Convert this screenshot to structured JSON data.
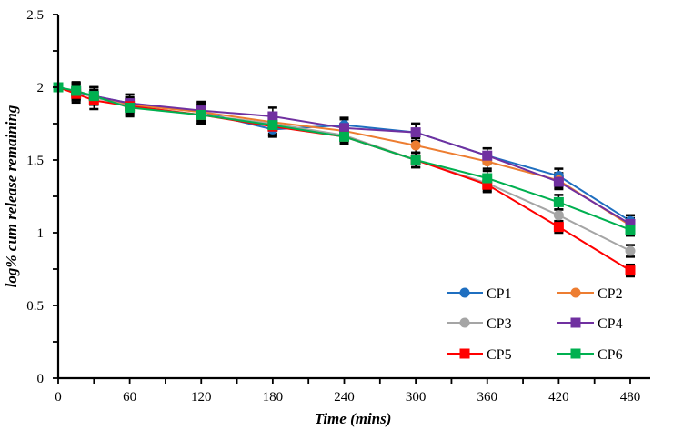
{
  "chart_data": {
    "type": "line",
    "title": "",
    "xlabel": "Time (mins)",
    "ylabel": "log% cum release remaining",
    "xlim": [
      0,
      495
    ],
    "ylim": [
      0,
      2.5
    ],
    "xticks": [
      0,
      60,
      120,
      180,
      240,
      300,
      360,
      420,
      480
    ],
    "xtick_labels": [
      "0",
      "60",
      "120",
      "180",
      "240",
      "300",
      "360",
      "420",
      "480"
    ],
    "x_minor_step": 30,
    "yticks": [
      0,
      0.5,
      1,
      1.5,
      2,
      2.5
    ],
    "ytick_labels": [
      "0",
      "0.5",
      "1",
      "1.5",
      "2",
      "2.5"
    ],
    "y_minor_step": 0.25,
    "grid": false,
    "legend_position": "bottom-right",
    "x": [
      0,
      15,
      30,
      60,
      120,
      180,
      240,
      300,
      360,
      420,
      480
    ],
    "series": [
      {
        "name": "CP1",
        "color": "#1F6FC0",
        "marker": "circle",
        "values": [
          2.0,
          1.97,
          1.94,
          1.89,
          1.83,
          1.71,
          1.74,
          1.69,
          1.53,
          1.39,
          1.08
        ],
        "error": [
          0,
          0.06,
          0.06,
          0.06,
          0.06,
          0.05,
          0.05,
          0.06,
          0.05,
          0.05,
          0.04
        ]
      },
      {
        "name": "CP2",
        "color": "#ED7D31",
        "marker": "circle",
        "values": [
          2.0,
          1.97,
          1.93,
          1.88,
          1.83,
          1.76,
          1.7,
          1.6,
          1.49,
          1.36,
          1.05
        ],
        "error": [
          0,
          0.05,
          0.05,
          0.05,
          0.05,
          0.05,
          0.05,
          0.05,
          0.05,
          0.05,
          0.04
        ]
      },
      {
        "name": "CP3",
        "color": "#A5A5A5",
        "marker": "circle",
        "values": [
          2.0,
          1.97,
          1.93,
          1.87,
          1.81,
          1.75,
          1.67,
          1.5,
          1.34,
          1.12,
          0.875
        ],
        "error": [
          0,
          0.05,
          0.05,
          0.05,
          0.05,
          0.05,
          0.05,
          0.05,
          0.05,
          0.04,
          0.04
        ]
      },
      {
        "name": "CP4",
        "color": "#7030A0",
        "marker": "square",
        "values": [
          2.0,
          1.97,
          1.94,
          1.89,
          1.84,
          1.8,
          1.72,
          1.69,
          1.53,
          1.35,
          1.06
        ],
        "error": [
          0,
          0.06,
          0.06,
          0.06,
          0.06,
          0.06,
          0.06,
          0.06,
          0.05,
          0.05,
          0.04
        ]
      },
      {
        "name": "CP5",
        "color": "#FF0000",
        "marker": "square",
        "values": [
          2.0,
          1.955,
          1.91,
          1.87,
          1.81,
          1.73,
          1.66,
          1.5,
          1.33,
          1.04,
          0.74
        ],
        "error": [
          0,
          0.06,
          0.06,
          0.06,
          0.06,
          0.06,
          0.05,
          0.05,
          0.05,
          0.04,
          0.04
        ]
      },
      {
        "name": "CP6",
        "color": "#00B050",
        "marker": "square",
        "values": [
          2.0,
          1.975,
          1.94,
          1.86,
          1.81,
          1.74,
          1.66,
          1.5,
          1.375,
          1.21,
          1.02
        ],
        "error": [
          0,
          0.06,
          0.06,
          0.06,
          0.06,
          0.06,
          0.05,
          0.05,
          0.05,
          0.05,
          0.04
        ]
      }
    ]
  }
}
